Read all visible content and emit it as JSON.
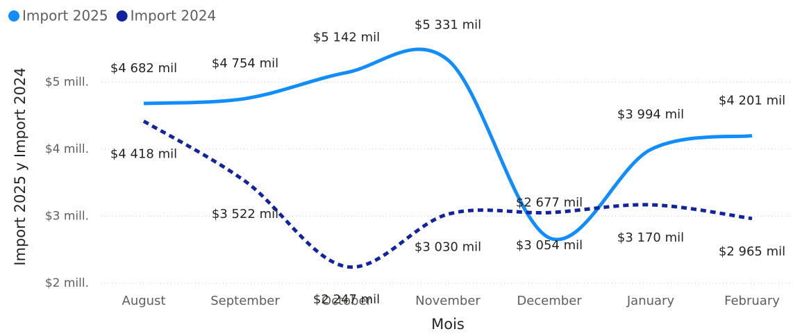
{
  "chart_data": {
    "type": "line",
    "categories": [
      "August",
      "September",
      "October",
      "November",
      "December",
      "January",
      "February"
    ],
    "series": [
      {
        "name": "Import 2025",
        "color": "#118DFF",
        "style": "solid",
        "values": [
          4682000,
          4754000,
          5142000,
          5331000,
          2677000,
          3994000,
          4201000
        ],
        "value_labels": [
          "$4 682 mil",
          "$4 754 mil",
          "$5 142 mil",
          "$5 331 mil",
          "$2 677 mil",
          "$3 994 mil",
          "$4 201 mil"
        ]
      },
      {
        "name": "Import 2024",
        "color": "#12239E",
        "style": "dashed",
        "values": [
          4418000,
          3522000,
          2247000,
          3030000,
          3054000,
          3170000,
          2965000
        ],
        "value_labels": [
          "$4 418 mil",
          "$3 522 mil",
          "$2 247 mil",
          "$3 030 mil",
          "$3 054 mil",
          "$3 170 mil",
          "$2 965 mil"
        ]
      }
    ],
    "x_label": "Mois",
    "y_label": "Import 2025 y Import 2024",
    "ylim": [
      2000000,
      5500000
    ],
    "yticks": [
      {
        "value": 2000000,
        "label": "$2 mill."
      },
      {
        "value": 3000000,
        "label": "$3 mill."
      },
      {
        "value": 4000000,
        "label": "$4 mill."
      },
      {
        "value": 5000000,
        "label": "$5 mill."
      }
    ],
    "grid": true,
    "legend": "top-left"
  }
}
